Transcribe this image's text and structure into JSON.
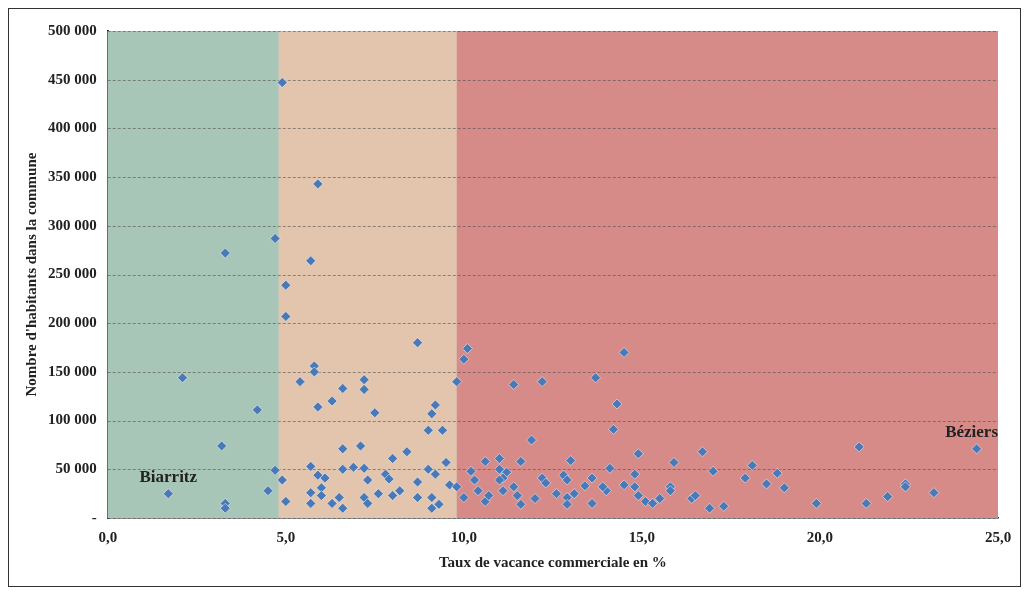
{
  "chart_data": {
    "type": "scatter",
    "xlabel": "Taux de vacance commerciale en %",
    "ylabel": "Nombre d'habitants dans la commune",
    "xlim": [
      0,
      25
    ],
    "xticks": [
      {
        "value": 0,
        "label": "0,0"
      },
      {
        "value": 5,
        "label": "5,0"
      },
      {
        "value": 10,
        "label": "10,0"
      },
      {
        "value": 15,
        "label": "15,0"
      },
      {
        "value": 20,
        "label": "20,0"
      },
      {
        "value": 25,
        "label": "25,0"
      }
    ],
    "ylim": [
      0,
      500000
    ],
    "yticks": [
      {
        "value": 0,
        "label": "-"
      },
      {
        "value": 50000,
        "label": "50 000"
      },
      {
        "value": 100000,
        "label": "100 000"
      },
      {
        "value": 150000,
        "label": "150 000"
      },
      {
        "value": 200000,
        "label": "200 000"
      },
      {
        "value": 250000,
        "label": "250 000"
      },
      {
        "value": 300000,
        "label": "300 000"
      },
      {
        "value": 350000,
        "label": "350 000"
      },
      {
        "value": 400000,
        "label": "400 000"
      },
      {
        "value": 450000,
        "label": "450 000"
      },
      {
        "value": 500000,
        "label": "500 000"
      }
    ],
    "grid": "y",
    "marker": "diamond",
    "bands": [
      {
        "axis": "x",
        "from": 0,
        "to": 4.8,
        "color": "#9fc4b3"
      },
      {
        "axis": "x",
        "from": 4.8,
        "to": 9.8,
        "color": "#e8c3a6"
      },
      {
        "axis": "x",
        "from": 9.8,
        "to": 25,
        "color": "#d97a78"
      }
    ],
    "annotations": [
      {
        "text": "Biarritz",
        "x": 1.7,
        "y": 25000
      },
      {
        "text": "Béziers",
        "x": 24.4,
        "y": 71000
      }
    ],
    "series": [
      {
        "color": "#4a79b8",
        "x": [
          1.7,
          24.4,
          4.9,
          5.9,
          4.7,
          3.3,
          5.7,
          5.0,
          5.0,
          8.7,
          2.1,
          5.8,
          5.8,
          5.4,
          7.2,
          7.2,
          6.6,
          9.8,
          5.9,
          6.3,
          7.5,
          4.2,
          9.2,
          9.1,
          9.0,
          9.4,
          3.2,
          6.6,
          7.1,
          8.4,
          8.0,
          4.7,
          5.7,
          6.6,
          6.9,
          7.2,
          9.5,
          9.0,
          4.9,
          4.5,
          5.9,
          6.1,
          7.3,
          7.8,
          7.9,
          8.7,
          9.2,
          9.6,
          5.7,
          6.0,
          6.0,
          6.5,
          7.2,
          7.6,
          8.0,
          8.2,
          8.7,
          9.1,
          5.0,
          5.7,
          6.3,
          6.6,
          7.3,
          9.1,
          9.3,
          3.3,
          3.3,
          10.1,
          10.0,
          14.5,
          11.4,
          12.2,
          13.7,
          14.3,
          14.2,
          11.9,
          14.9,
          16.7,
          15.9,
          17.0,
          13.0,
          11.6,
          11.0,
          10.6,
          10.2,
          14.1,
          14.8,
          12.2,
          12.3,
          12.8,
          12.9,
          13.6,
          13.4,
          11.2,
          11.1,
          11.4,
          11.5,
          11.6,
          10.3,
          10.4,
          10.6,
          10.7,
          10.0,
          9.8,
          11.0,
          11.0,
          11.1,
          12.0,
          12.6,
          12.9,
          12.9,
          13.1,
          13.6,
          14.0,
          13.9,
          14.5,
          14.8,
          14.9,
          15.1,
          15.3,
          15.5,
          15.8,
          15.8,
          16.4,
          16.5,
          16.9,
          17.3,
          17.9,
          18.1,
          18.5,
          18.8,
          19.0,
          19.9,
          21.1,
          21.3,
          21.9,
          22.4,
          22.4,
          23.2
        ],
        "values": [
          25000,
          71000,
          447000,
          343000,
          287000,
          272000,
          264000,
          239000,
          207000,
          180000,
          144000,
          156000,
          150000,
          140000,
          142000,
          132000,
          133000,
          140000,
          114000,
          120000,
          108000,
          111000,
          116000,
          107000,
          90000,
          90000,
          74000,
          71000,
          74000,
          68000,
          61000,
          49000,
          53000,
          50000,
          52000,
          51000,
          57000,
          50000,
          39000,
          28000,
          44000,
          41000,
          39000,
          45000,
          40000,
          37000,
          45000,
          34000,
          26000,
          31000,
          23000,
          21000,
          21000,
          25000,
          23000,
          28000,
          21000,
          21000,
          17000,
          15000,
          15000,
          10000,
          15000,
          10000,
          14000,
          15000,
          10000,
          174000,
          163000,
          170000,
          137000,
          140000,
          144000,
          117000,
          91000,
          80000,
          66000,
          68000,
          57000,
          48000,
          59000,
          58000,
          61000,
          58000,
          48000,
          51000,
          45000,
          41000,
          36000,
          44000,
          39000,
          41000,
          33000,
          47000,
          41000,
          32000,
          23000,
          14000,
          39000,
          28000,
          17000,
          23000,
          21000,
          32000,
          50000,
          39000,
          28000,
          20000,
          25000,
          21000,
          14000,
          25000,
          15000,
          28000,
          32000,
          34000,
          32000,
          23000,
          17000,
          15000,
          20000,
          32000,
          28000,
          20000,
          23000,
          10000,
          12000,
          41000,
          54000,
          35000,
          46000,
          31000,
          15000,
          73000,
          15000,
          22000,
          35000,
          32000,
          26000
        ]
      }
    ]
  }
}
